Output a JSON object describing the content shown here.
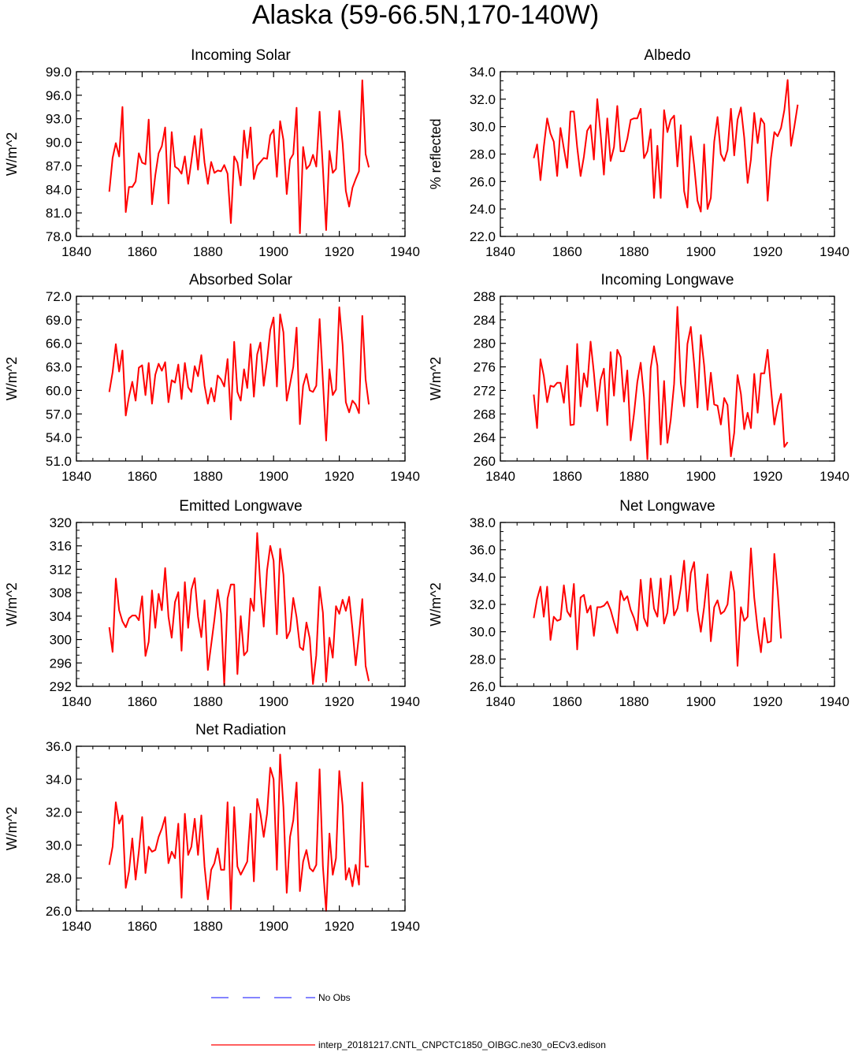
{
  "title": "Alaska (59-66.5N,170-140W)",
  "colors": {
    "series": "#ff0000",
    "obs": "#3b3bff",
    "axis": "#000000"
  },
  "legend": {
    "obs_label": "No Obs",
    "model_label": "interp_20181217.CNTL_CNPCTC1850_OIBGC.ne30_oECv3.edison"
  },
  "chart_data": [
    {
      "type": "line",
      "title": "Incoming Solar",
      "xlabel": "",
      "ylabel": "W/m^2",
      "xlim": [
        1840,
        1940
      ],
      "ylim": [
        78.0,
        99.0
      ],
      "xticks": [
        1840,
        1860,
        1880,
        1900,
        1920,
        1940
      ],
      "yticks": [
        78.0,
        81.0,
        84.0,
        87.0,
        90.0,
        93.0,
        96.0,
        99.0
      ],
      "ytick_labels": [
        "78.0",
        "81.0",
        "84.0",
        "87.0",
        "90.0",
        "93.0",
        "96.0",
        "99.0"
      ],
      "series": [
        {
          "name": "interp_20181217.CNTL_CNPCTC1850_OIBGC.ne30_oECv3.edison",
          "x_start": 1850,
          "values": [
            83.7,
            88.0,
            89.9,
            88.2,
            94.5,
            81.1,
            84.3,
            84.3,
            85.0,
            88.6,
            87.4,
            87.2,
            92.9,
            82.1,
            85.8,
            88.6,
            89.5,
            91.9,
            82.2,
            91.3,
            86.9,
            86.6,
            86.0,
            88.2,
            84.7,
            87.6,
            90.8,
            86.5,
            91.7,
            87.4,
            84.7,
            87.5,
            86.1,
            86.4,
            86.3,
            87.1,
            86.0,
            79.7,
            88.2,
            87.4,
            84.5,
            91.5,
            88.0,
            91.9,
            85.3,
            87.0,
            87.5,
            88.0,
            87.9,
            90.9,
            91.6,
            85.6,
            92.7,
            90.3,
            83.4,
            87.8,
            88.5,
            94.4,
            78.4,
            89.4,
            86.6,
            87.1,
            88.4,
            86.9,
            93.9,
            86.7,
            78.8,
            88.9,
            86.1,
            86.6,
            94.0,
            89.9,
            83.8,
            81.8,
            84.2,
            85.3,
            86.3,
            97.9,
            88.5,
            86.8
          ]
        }
      ]
    },
    {
      "type": "line",
      "title": "Albedo",
      "xlabel": "",
      "ylabel": "% reflected",
      "xlim": [
        1840,
        1940
      ],
      "ylim": [
        22.0,
        34.0
      ],
      "xticks": [
        1840,
        1860,
        1880,
        1900,
        1920,
        1940
      ],
      "yticks": [
        22.0,
        24.0,
        26.0,
        28.0,
        30.0,
        32.0,
        34.0
      ],
      "ytick_labels": [
        "22.0",
        "24.0",
        "26.0",
        "28.0",
        "30.0",
        "32.0",
        "34.0"
      ],
      "series": [
        {
          "name": "interp_20181217.CNTL_CNPCTC1850_OIBGC.ne30_oECv3.edison",
          "x_start": 1850,
          "values": [
            27.7,
            28.7,
            26.1,
            28.5,
            30.6,
            29.5,
            28.9,
            26.4,
            29.9,
            28.4,
            27.0,
            31.1,
            31.1,
            28.5,
            26.4,
            27.8,
            29.7,
            30.1,
            27.6,
            32.0,
            29.5,
            26.5,
            30.6,
            27.5,
            28.5,
            31.5,
            28.2,
            28.2,
            29.1,
            30.5,
            30.6,
            30.6,
            31.3,
            27.7,
            28.2,
            29.8,
            24.8,
            28.6,
            24.8,
            31.2,
            29.6,
            30.5,
            30.8,
            27.1,
            30.1,
            25.3,
            24.1,
            29.3,
            27.2,
            24.6,
            23.8,
            28.7,
            24.0,
            24.8,
            28.9,
            30.7,
            28.0,
            27.5,
            28.3,
            31.3,
            27.9,
            30.5,
            31.4,
            29.2,
            25.9,
            27.6,
            31.0,
            28.8,
            30.6,
            30.2,
            24.6,
            27.7,
            29.6,
            29.3,
            29.9,
            31.2,
            33.4,
            28.6,
            30.0,
            31.6
          ]
        }
      ]
    },
    {
      "type": "line",
      "title": "Absorbed Solar",
      "xlabel": "",
      "ylabel": "W/m^2",
      "xlim": [
        1840,
        1940
      ],
      "ylim": [
        51.0,
        72.0
      ],
      "xticks": [
        1840,
        1860,
        1880,
        1900,
        1920,
        1940
      ],
      "yticks": [
        51.0,
        54.0,
        57.0,
        60.0,
        63.0,
        66.0,
        69.0,
        72.0
      ],
      "ytick_labels": [
        "51.0",
        "54.0",
        "57.0",
        "60.0",
        "63.0",
        "66.0",
        "69.0",
        "72.0"
      ],
      "series": [
        {
          "name": "interp_20181217.CNTL_CNPCTC1850_OIBGC.ne30_oECv3.edison",
          "x_start": 1850,
          "values": [
            59.8,
            62.3,
            65.9,
            62.4,
            65.1,
            56.8,
            59.2,
            61.1,
            58.7,
            62.9,
            63.2,
            59.4,
            63.5,
            58.3,
            62.0,
            63.4,
            62.5,
            63.6,
            58.5,
            61.3,
            61.0,
            63.3,
            58.9,
            63.5,
            60.4,
            59.8,
            63.1,
            61.8,
            64.5,
            60.6,
            58.3,
            60.3,
            58.6,
            61.9,
            61.4,
            60.5,
            64.0,
            56.3,
            66.2,
            59.8,
            58.7,
            62.7,
            60.3,
            65.9,
            59.2,
            64.6,
            66.1,
            60.6,
            63.8,
            67.7,
            69.3,
            60.5,
            69.7,
            67.4,
            58.7,
            60.8,
            63.0,
            68.0,
            55.7,
            60.6,
            62.1,
            60.0,
            59.8,
            60.6,
            69.1,
            61.2,
            53.6,
            62.7,
            59.4,
            60.1,
            70.6,
            65.8,
            58.5,
            57.2,
            58.7,
            58.2,
            57.1,
            69.5,
            61.4,
            58.2
          ]
        }
      ]
    },
    {
      "type": "line",
      "title": "Incoming Longwave",
      "xlabel": "",
      "ylabel": "W/m^2",
      "xlim": [
        1840,
        1940
      ],
      "ylim": [
        260,
        288
      ],
      "xticks": [
        1840,
        1860,
        1880,
        1900,
        1920,
        1940
      ],
      "yticks": [
        260,
        264,
        268,
        272,
        276,
        280,
        284,
        288
      ],
      "ytick_labels": [
        "260",
        "264",
        "268",
        "272",
        "276",
        "280",
        "284",
        "288"
      ],
      "series": [
        {
          "name": "interp_20181217.CNTL_CNPCTC1850_OIBGC.ne30_oECv3.edison",
          "x_start": 1850,
          "values": [
            271.3,
            265.6,
            277.3,
            274.5,
            270.0,
            272.8,
            272.6,
            273.3,
            273.3,
            269.9,
            276.2,
            266.1,
            266.2,
            279.9,
            269.3,
            274.9,
            272.6,
            280.3,
            275.0,
            268.5,
            273.8,
            275.7,
            266.1,
            278.5,
            271.1,
            278.9,
            277.7,
            270.1,
            275.4,
            263.5,
            268.0,
            273.4,
            276.7,
            270.8,
            260.3,
            275.8,
            279.5,
            276.2,
            262.8,
            273.6,
            263.1,
            267.0,
            273.1,
            286.2,
            273.2,
            269.3,
            279.9,
            282.8,
            276.5,
            269.1,
            281.4,
            276.3,
            268.7,
            275.0,
            269.6,
            269.4,
            266.2,
            270.7,
            269.5,
            260.8,
            264.8,
            274.6,
            271.4,
            265.4,
            268.2,
            265.6,
            274.8,
            268.2,
            274.9,
            274.9,
            278.9,
            272.4,
            266.2,
            269.3,
            271.4,
            262.4,
            263.2
          ]
        }
      ]
    },
    {
      "type": "line",
      "title": "Emitted Longwave",
      "xlabel": "",
      "ylabel": "W/m^2",
      "xlim": [
        1840,
        1940
      ],
      "ylim": [
        292,
        320
      ],
      "xticks": [
        1840,
        1860,
        1880,
        1900,
        1920,
        1940
      ],
      "yticks": [
        292,
        296,
        300,
        304,
        308,
        312,
        316,
        320
      ],
      "ytick_labels": [
        "292",
        "296",
        "300",
        "304",
        "308",
        "312",
        "316",
        "320"
      ],
      "series": [
        {
          "name": "interp_20181217.CNTL_CNPCTC1850_OIBGC.ne30_oECv3.edison",
          "x_start": 1850,
          "values": [
            302.1,
            297.9,
            310.4,
            305.0,
            303.1,
            302.1,
            303.6,
            304.1,
            304.1,
            303.3,
            307.4,
            297.2,
            299.6,
            308.4,
            302.0,
            307.8,
            305.0,
            312.2,
            303.9,
            300.3,
            306.4,
            308.1,
            298.1,
            309.8,
            302.0,
            308.5,
            310.5,
            303.9,
            300.4,
            306.7,
            294.8,
            299.1,
            303.4,
            308.5,
            304.4,
            292.2,
            307.0,
            309.4,
            309.4,
            294.1,
            304.0,
            297.3,
            298.0,
            307.0,
            304.9,
            318.2,
            309.0,
            302.2,
            311.8,
            316.0,
            313.5,
            300.9,
            315.5,
            311.1,
            300.2,
            301.5,
            307.1,
            303.8,
            298.7,
            298.2,
            302.9,
            300.2,
            292.4,
            297.3,
            309.0,
            304.6,
            292.8,
            300.3,
            296.9,
            305.7,
            304.4,
            306.8,
            304.9,
            307.3,
            301.8,
            295.6,
            300.8,
            306.9,
            295.5,
            292.9
          ]
        }
      ]
    },
    {
      "type": "line",
      "title": "Net Longwave",
      "xlabel": "",
      "ylabel": "W/m^2",
      "xlim": [
        1840,
        1940
      ],
      "ylim": [
        26.0,
        38.0
      ],
      "xticks": [
        1840,
        1860,
        1880,
        1900,
        1920,
        1940
      ],
      "yticks": [
        26.0,
        28.0,
        30.0,
        32.0,
        34.0,
        36.0,
        38.0
      ],
      "ytick_labels": [
        "26.0",
        "28.0",
        "30.0",
        "32.0",
        "34.0",
        "36.0",
        "38.0"
      ],
      "series": [
        {
          "name": "interp_20181217.CNTL_CNPCTC1850_OIBGC.ne30_oECv3.edison",
          "x_start": 1850,
          "values": [
            31.0,
            32.4,
            33.3,
            31.1,
            33.3,
            29.4,
            31.1,
            30.8,
            30.9,
            33.4,
            31.5,
            31.1,
            33.5,
            28.7,
            32.5,
            32.7,
            31.4,
            31.9,
            29.7,
            31.8,
            31.8,
            31.9,
            32.2,
            31.6,
            30.7,
            29.9,
            33.0,
            32.3,
            32.6,
            31.6,
            31.0,
            30.1,
            33.8,
            31.0,
            30.4,
            33.9,
            31.7,
            31.1,
            33.9,
            30.6,
            31.4,
            34.1,
            31.2,
            31.7,
            33.2,
            35.2,
            31.5,
            34.3,
            35.1,
            31.6,
            30.0,
            31.8,
            34.2,
            29.3,
            31.8,
            32.3,
            31.3,
            31.5,
            32.0,
            34.4,
            32.9,
            27.5,
            31.8,
            30.8,
            31.1,
            36.1,
            32.5,
            30.2,
            28.5,
            31.0,
            29.2,
            29.3,
            35.7,
            33.0,
            29.5
          ]
        }
      ]
    },
    {
      "type": "line",
      "title": "Net Radiation",
      "xlabel": "",
      "ylabel": "W/m^2",
      "xlim": [
        1840,
        1940
      ],
      "ylim": [
        26.0,
        36.0
      ],
      "xticks": [
        1840,
        1860,
        1880,
        1900,
        1920,
        1940
      ],
      "yticks": [
        26.0,
        28.0,
        30.0,
        32.0,
        34.0,
        36.0
      ],
      "ytick_labels": [
        "26.0",
        "28.0",
        "30.0",
        "32.0",
        "34.0",
        "36.0"
      ],
      "series": [
        {
          "name": "interp_20181217.CNTL_CNPCTC1850_OIBGC.ne30_oECv3.edison",
          "x_start": 1850,
          "values": [
            28.8,
            29.9,
            32.6,
            31.3,
            31.8,
            27.4,
            28.4,
            30.4,
            27.9,
            29.6,
            31.7,
            28.3,
            29.9,
            29.6,
            29.7,
            30.5,
            31.0,
            31.7,
            28.9,
            29.6,
            29.2,
            31.3,
            26.8,
            31.9,
            29.4,
            29.9,
            31.6,
            29.4,
            31.8,
            28.7,
            26.7,
            28.5,
            28.9,
            29.8,
            28.5,
            28.5,
            32.6,
            26.1,
            32.3,
            28.7,
            28.2,
            28.6,
            29.0,
            31.9,
            27.8,
            32.8,
            31.9,
            30.5,
            31.9,
            34.7,
            34.0,
            28.5,
            35.5,
            32.3,
            27.1,
            30.5,
            31.5,
            33.8,
            27.2,
            29.0,
            29.7,
            28.6,
            28.4,
            28.8,
            34.6,
            28.7,
            26.0,
            30.7,
            28.2,
            29.2,
            34.5,
            32.4,
            27.9,
            28.6,
            27.5,
            28.8,
            27.6,
            33.8,
            28.7,
            28.7
          ]
        }
      ]
    }
  ]
}
